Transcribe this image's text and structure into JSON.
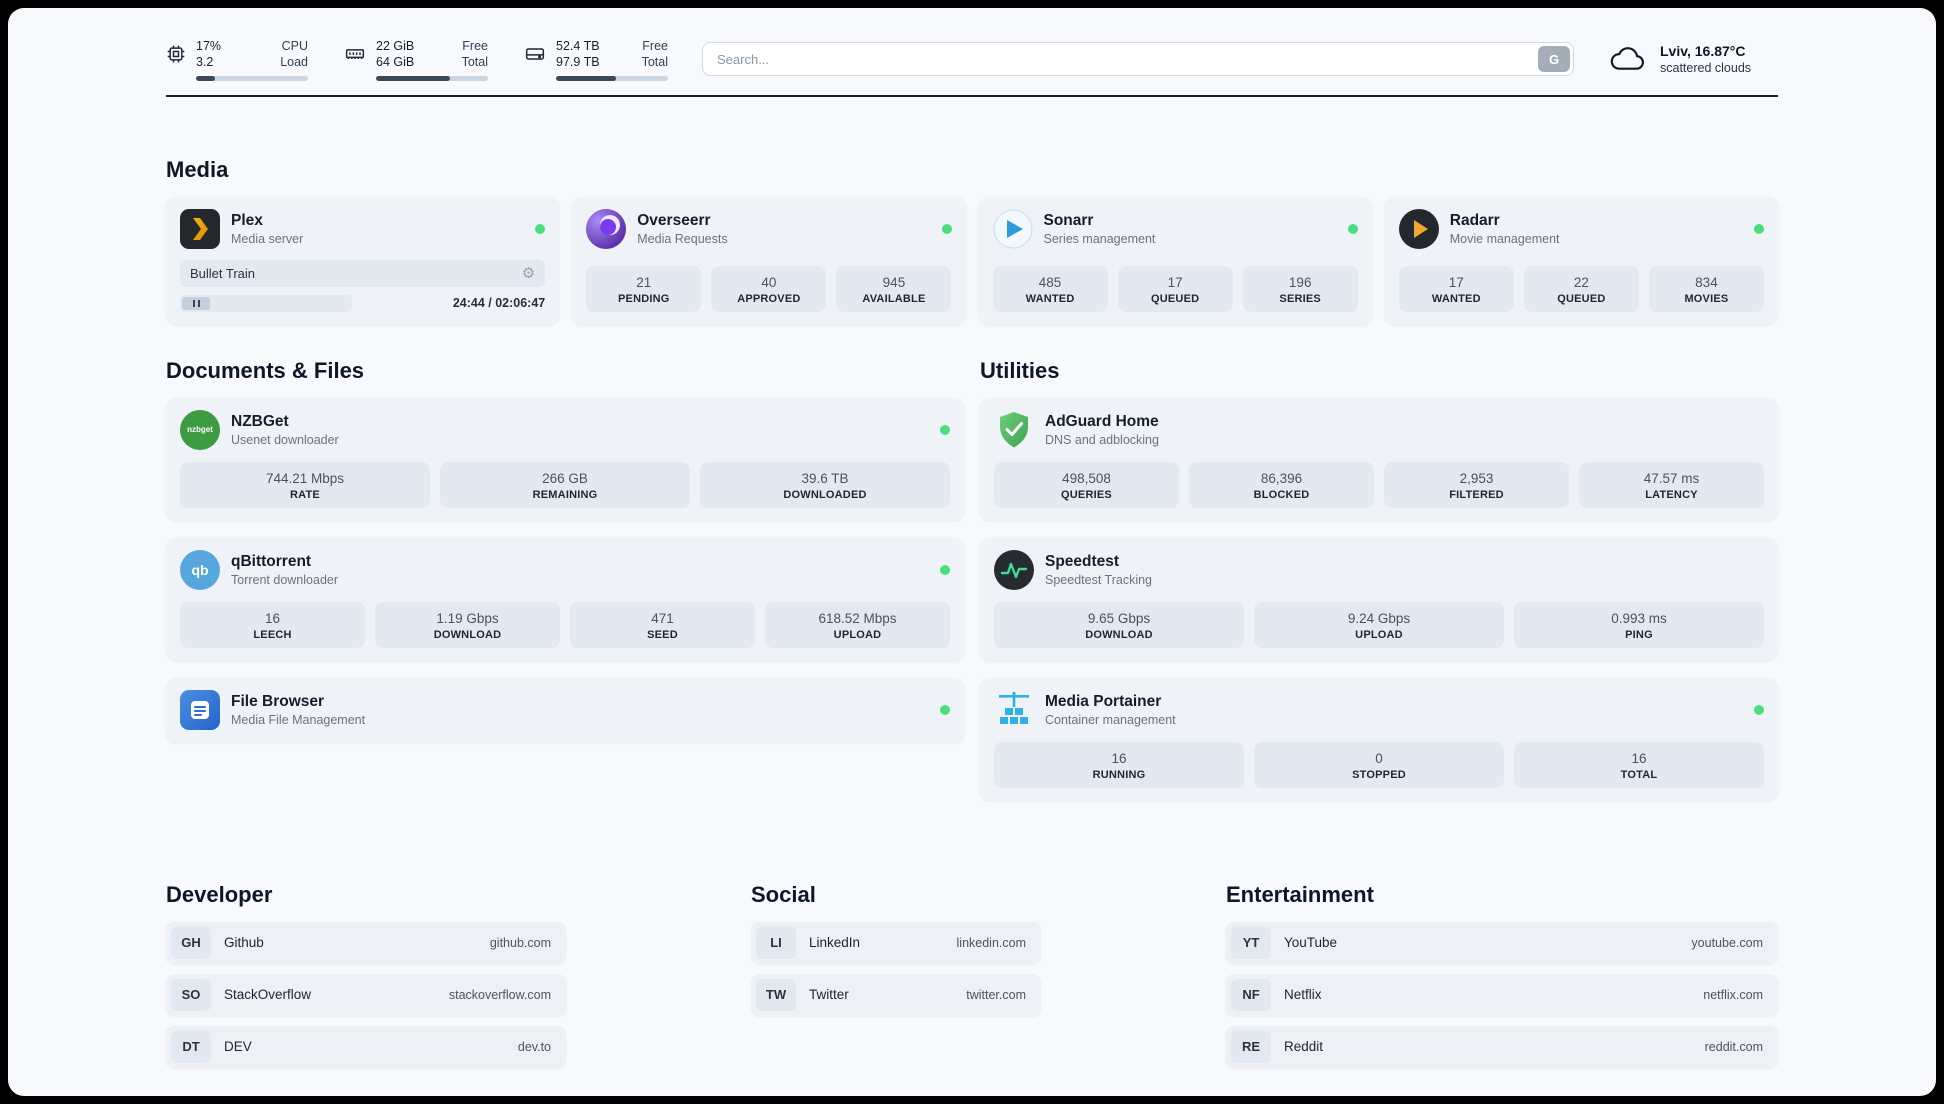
{
  "topbar": {
    "monitors": [
      {
        "icon": "cpu-icon",
        "value": "17%",
        "sub": "3.2",
        "label_top": "CPU",
        "label_bottom": "Load",
        "percent": 17
      },
      {
        "icon": "ram-icon",
        "value": "22 GiB",
        "sub": "64 GiB",
        "label_top": "Free",
        "label_bottom": "Total",
        "percent": 66
      },
      {
        "icon": "disk-icon",
        "value": "52.4 TB",
        "sub": "97.9 TB",
        "label_top": "Free",
        "label_bottom": "Total",
        "percent": 54
      }
    ],
    "search": {
      "placeholder": "Search...",
      "button_label": "G"
    },
    "weather": {
      "icon": "cloud-icon",
      "location": "Lviv, 16.87°C",
      "condition": "scattered clouds"
    }
  },
  "sections": {
    "media": "Media",
    "documents": "Documents & Files",
    "utilities": "Utilities"
  },
  "apps": {
    "plex": {
      "name": "Plex",
      "subtitle": "Media server",
      "status": "online",
      "player": {
        "title": "Bullet Train",
        "time": "24:44 / 02:06:47",
        "progress_percent": 20
      }
    },
    "overseerr": {
      "name": "Overseerr",
      "subtitle": "Media Requests",
      "status": "online",
      "stats": [
        {
          "value": "21",
          "label": "PENDING"
        },
        {
          "value": "40",
          "label": "APPROVED"
        },
        {
          "value": "945",
          "label": "AVAILABLE"
        }
      ]
    },
    "sonarr": {
      "name": "Sonarr",
      "subtitle": "Series management",
      "status": "online",
      "stats": [
        {
          "value": "485",
          "label": "WANTED"
        },
        {
          "value": "17",
          "label": "QUEUED"
        },
        {
          "value": "196",
          "label": "SERIES"
        }
      ]
    },
    "radarr": {
      "name": "Radarr",
      "subtitle": "Movie management",
      "status": "online",
      "stats": [
        {
          "value": "17",
          "label": "WANTED"
        },
        {
          "value": "22",
          "label": "QUEUED"
        },
        {
          "value": "834",
          "label": "MOVIES"
        }
      ]
    },
    "nzbget": {
      "name": "NZBGet",
      "subtitle": "Usenet downloader",
      "status": "online",
      "icon_text": "nzbget",
      "stats": [
        {
          "value": "744.21 Mbps",
          "label": "RATE"
        },
        {
          "value": "266 GB",
          "label": "REMAINING"
        },
        {
          "value": "39.6 TB",
          "label": "DOWNLOADED"
        }
      ]
    },
    "qbittorrent": {
      "name": "qBittorrent",
      "subtitle": "Torrent downloader",
      "status": "online",
      "icon_text": "qb",
      "stats": [
        {
          "value": "16",
          "label": "LEECH"
        },
        {
          "value": "1.19 Gbps",
          "label": "DOWNLOAD"
        },
        {
          "value": "471",
          "label": "SEED"
        },
        {
          "value": "618.52 Mbps",
          "label": "UPLOAD"
        }
      ]
    },
    "filebrowser": {
      "name": "File Browser",
      "subtitle": "Media File Management",
      "status": "online"
    },
    "adguard": {
      "name": "AdGuard Home",
      "subtitle": "DNS and adblocking",
      "stats": [
        {
          "value": "498,508",
          "label": "QUERIES"
        },
        {
          "value": "86,396",
          "label": "BLOCKED"
        },
        {
          "value": "2,953",
          "label": "FILTERED"
        },
        {
          "value": "47.57 ms",
          "label": "LATENCY"
        }
      ]
    },
    "speedtest": {
      "name": "Speedtest",
      "subtitle": "Speedtest Tracking",
      "stats": [
        {
          "value": "9.65 Gbps",
          "label": "DOWNLOAD"
        },
        {
          "value": "9.24 Gbps",
          "label": "UPLOAD"
        },
        {
          "value": "0.993 ms",
          "label": "PING"
        }
      ]
    },
    "portainer": {
      "name": "Media Portainer",
      "subtitle": "Container management",
      "status": "online",
      "stats": [
        {
          "value": "16",
          "label": "RUNNING"
        },
        {
          "value": "0",
          "label": "STOPPED"
        },
        {
          "value": "16",
          "label": "TOTAL"
        }
      ]
    }
  },
  "bookmarks": {
    "developer": {
      "title": "Developer",
      "items": [
        {
          "abbr": "GH",
          "name": "Github",
          "url": "github.com"
        },
        {
          "abbr": "SO",
          "name": "StackOverflow",
          "url": "stackoverflow.com"
        },
        {
          "abbr": "DT",
          "name": "DEV",
          "url": "dev.to"
        }
      ]
    },
    "social": {
      "title": "Social",
      "items": [
        {
          "abbr": "LI",
          "name": "LinkedIn",
          "url": "linkedin.com"
        },
        {
          "abbr": "TW",
          "name": "Twitter",
          "url": "twitter.com"
        }
      ]
    },
    "entertainment": {
      "title": "Entertainment",
      "items": [
        {
          "abbr": "YT",
          "name": "YouTube",
          "url": "youtube.com"
        },
        {
          "abbr": "NF",
          "name": "Netflix",
          "url": "netflix.com"
        },
        {
          "abbr": "RE",
          "name": "Reddit",
          "url": "reddit.com"
        }
      ]
    }
  },
  "colors": {
    "status_online": "#4ade80",
    "plex_accent": "#e5a00d",
    "background": "#f7f9fc"
  }
}
